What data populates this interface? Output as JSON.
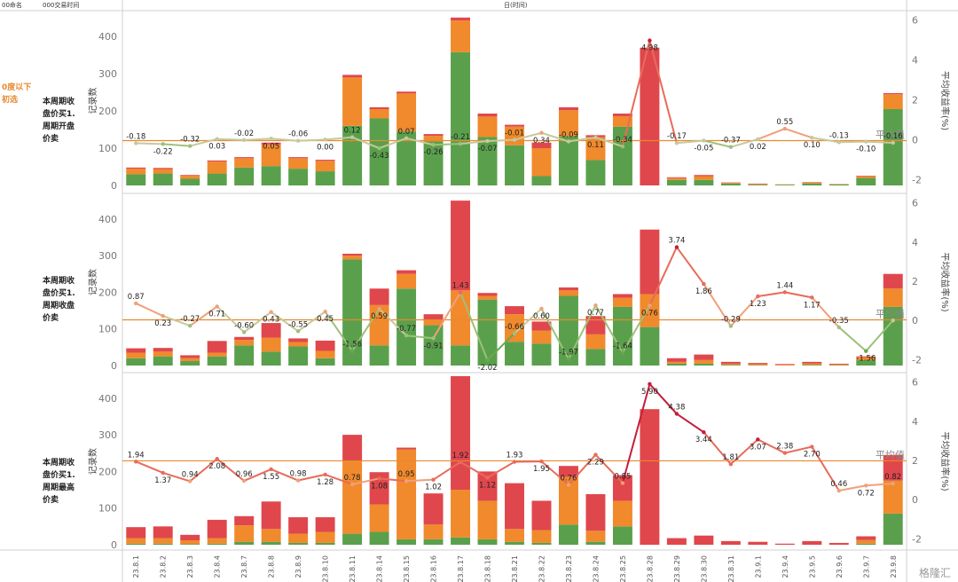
{
  "header": {
    "col1": "00命名",
    "col2": "000交易时间",
    "col3": "日(时间)"
  },
  "group_label": [
    "0度以下",
    "初选"
  ],
  "row_labels": [
    [
      "本周期收",
      "盘价买1.",
      "周期开盘",
      "价卖"
    ],
    [
      "本周期收",
      "盘价买1.",
      "周期收盘",
      "价卖"
    ],
    [
      "本周期收",
      "盘价买1.",
      "周期最高",
      "价卖"
    ]
  ],
  "watermark": "格隆汇",
  "chart_data": {
    "type": "bar",
    "categories": [
      "23.8.1",
      "23.8.2",
      "23.8.3",
      "23.8.4",
      "23.8.7",
      "23.8.8",
      "23.8.9",
      "23.8.10",
      "23.8.11",
      "23.8.14",
      "23.8.15",
      "23.8.16",
      "23.8.17",
      "23.8.18",
      "23.8.21",
      "23.8.22",
      "23.8.23",
      "23.8.24",
      "23.8.25",
      "23.8.28",
      "23.8.29",
      "23.8.30",
      "23.8.31",
      "23.9.1",
      "23.9.4",
      "23.9.5",
      "23.9.6",
      "23.9.7",
      "23.9.8"
    ],
    "ylabel": "记录数",
    "y2label": "平均收益率(%)",
    "ylim": [
      0,
      460
    ],
    "y2lim": [
      -2.3,
      6.3
    ],
    "yticks": [
      0,
      100,
      200,
      300,
      400
    ],
    "y2ticks": [
      -2,
      0,
      2,
      4,
      6
    ],
    "avg_label": "平均值",
    "colors": {
      "green": "#5aa04c",
      "orange": "#f08a2c",
      "red": "#e0474c",
      "avg_line": "#e8892e"
    },
    "panels": [
      {
        "name": "周期开盘",
        "bars_green": [
          30,
          32,
          18,
          32,
          48,
          52,
          45,
          38,
          160,
          180,
          145,
          118,
          358,
          130,
          108,
          25,
          132,
          68,
          158,
          0,
          15,
          15,
          5,
          2,
          2,
          5,
          3,
          20,
          205
        ],
        "bars_orange": [
          15,
          12,
          8,
          32,
          25,
          58,
          28,
          28,
          130,
          25,
          102,
          15,
          85,
          55,
          50,
          75,
          70,
          62,
          28,
          0,
          5,
          10,
          2,
          2,
          1,
          3,
          1,
          5,
          40
        ],
        "bars_red": [
          3,
          3,
          2,
          3,
          3,
          5,
          3,
          3,
          7,
          5,
          5,
          5,
          8,
          8,
          5,
          15,
          8,
          5,
          7,
          370,
          2,
          3,
          1,
          1,
          0,
          1,
          0,
          1,
          3
        ],
        "avg_returns": [
          -0.18,
          -0.22,
          -0.32,
          0.03,
          -0.02,
          0.05,
          -0.06,
          0.0,
          0.12,
          -0.43,
          0.07,
          -0.26,
          -0.21,
          -0.07,
          -0.01,
          0.34,
          -0.09,
          0.11,
          -0.34,
          4.98,
          -0.17,
          -0.05,
          -0.37,
          0.02,
          0.55,
          0.1,
          -0.13,
          -0.1,
          -0.16
        ],
        "avg_value": -0.05,
        "labels": [
          "-0.18",
          "-0.22",
          "-0.32",
          "0.03",
          "-0.02",
          "0.05",
          "-0.06",
          "0.00",
          "0.12",
          "-0.43",
          "0.07",
          "-0.26",
          "-0.21",
          "-0.07",
          "-0.01",
          "0.34",
          "-0.09",
          "0.11",
          "-0.34",
          "4.98",
          "-0.17",
          "-0.05",
          "-0.37",
          "0.02",
          "0.55",
          "0.10",
          "-0.13",
          "-0.10",
          "-0.16"
        ]
      },
      {
        "name": "周期收盘",
        "bars_green": [
          20,
          25,
          12,
          25,
          55,
          38,
          52,
          20,
          290,
          55,
          210,
          110,
          55,
          180,
          65,
          60,
          190,
          45,
          160,
          105,
          5,
          5,
          2,
          1,
          0,
          2,
          1,
          15,
          160
        ],
        "bars_orange": [
          15,
          13,
          8,
          10,
          15,
          38,
          12,
          20,
          10,
          110,
          40,
          15,
          150,
          10,
          75,
          35,
          15,
          40,
          25,
          90,
          5,
          10,
          3,
          3,
          2,
          4,
          2,
          8,
          50
        ],
        "bars_red": [
          12,
          10,
          8,
          32,
          8,
          40,
          10,
          28,
          5,
          45,
          10,
          15,
          245,
          8,
          22,
          25,
          8,
          50,
          10,
          176,
          10,
          15,
          5,
          3,
          2,
          4,
          2,
          2,
          40
        ],
        "avg_returns": [
          0.87,
          0.23,
          -0.27,
          0.71,
          -0.6,
          0.43,
          -0.55,
          0.45,
          -1.56,
          0.59,
          -0.77,
          -0.91,
          1.43,
          -2.02,
          -0.66,
          0.6,
          -1.97,
          0.77,
          -1.64,
          0.76,
          3.74,
          1.86,
          -0.29,
          1.23,
          1.44,
          1.17,
          -0.35,
          -1.56,
          0.0
        ],
        "avg_value": 0.03,
        "labels": [
          "0.87",
          "0.23",
          "-0.27",
          "0.71",
          "-0.60",
          "0.43",
          "-0.55",
          "0.45",
          "-1.56",
          "0.59",
          "-0.77",
          "-0.91",
          "1.43",
          "-2.02",
          "-0.66",
          "0.60",
          "-1.97",
          "0.77",
          "-1.64",
          "0.76",
          "3.74",
          "1.86",
          "-0.29",
          "1.23",
          "1.44",
          "1.17",
          "-0.35",
          "-1.56",
          ""
        ]
      },
      {
        "name": "周期最高",
        "bars_green": [
          3,
          3,
          2,
          3,
          8,
          8,
          5,
          5,
          30,
          35,
          15,
          15,
          20,
          15,
          8,
          5,
          55,
          8,
          50,
          0,
          0,
          0,
          0,
          0,
          0,
          0,
          0,
          3,
          85
        ],
        "bars_orange": [
          15,
          15,
          10,
          15,
          45,
          35,
          25,
          30,
          200,
          75,
          245,
          40,
          130,
          105,
          35,
          35,
          130,
          30,
          70,
          0,
          0,
          0,
          0,
          0,
          0,
          0,
          0,
          10,
          90
        ],
        "bars_red": [
          30,
          32,
          15,
          50,
          25,
          75,
          45,
          40,
          70,
          88,
          5,
          85,
          310,
          80,
          125,
          80,
          30,
          100,
          70,
          370,
          18,
          25,
          10,
          8,
          3,
          10,
          5,
          10,
          70
        ],
        "avg_returns": [
          1.94,
          1.37,
          0.94,
          2.08,
          0.96,
          1.55,
          0.98,
          1.28,
          0.78,
          1.08,
          0.95,
          1.02,
          1.92,
          1.12,
          1.93,
          1.95,
          0.76,
          2.29,
          0.85,
          5.9,
          4.38,
          3.44,
          1.81,
          3.07,
          2.38,
          2.7,
          0.46,
          0.72,
          0.82
        ],
        "avg_value": 1.98,
        "labels": [
          "1.94",
          "1.37",
          "0.94",
          "2.08",
          "0.96",
          "1.55",
          "0.98",
          "1.28",
          "0.78",
          "1.08",
          "0.95",
          "1.02",
          "1.92",
          "1.12",
          "1.93",
          "1.95",
          "0.76",
          "2.29",
          "0.85",
          "5.90",
          "4.38",
          "3.44",
          "1.81",
          "3.07",
          "2.38",
          "2.70",
          "0.46",
          "0.72",
          "0.82"
        ]
      }
    ]
  }
}
